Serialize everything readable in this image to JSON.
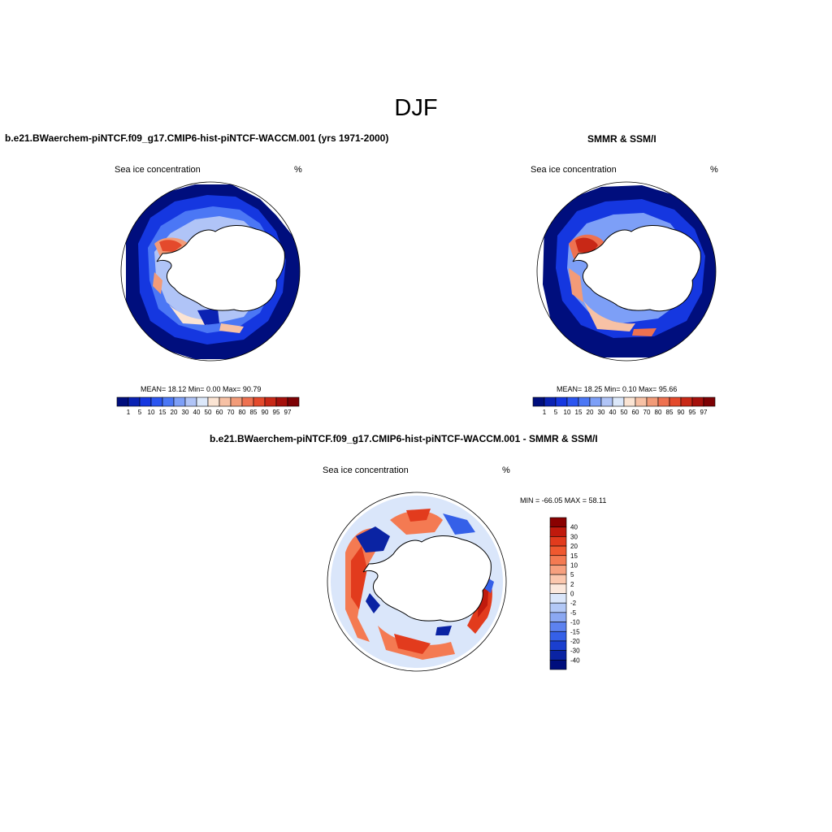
{
  "figure_title": "DJF",
  "panels": [
    {
      "title": "b.e21.BWaerchem-piNTCF.f09_g17.CMIP6-hist-piNTCF-WACCM.001 (yrs 1971-2000)",
      "left_label": "Sea ice concentration",
      "right_label": "%",
      "stats": "MEAN=  18.12  Min=   0.00  Max=  90.79"
    },
    {
      "title": "SMMR & SSM/I",
      "left_label": "Sea ice concentration",
      "right_label": "%",
      "stats": "MEAN=  18.25  Min=   0.10  Max=  95.66"
    },
    {
      "title": "b.e21.BWaerchem-piNTCF.f09_g17.CMIP6-hist-piNTCF-WACCM.001 - SMMR & SSM/I",
      "left_label": "Sea ice concentration",
      "right_label": "%",
      "stats": "MIN = -66.05 MAX =  58.11"
    }
  ],
  "colorbar_conc": {
    "labels": [
      "1",
      "5",
      "10",
      "15",
      "20",
      "30",
      "40",
      "50",
      "60",
      "70",
      "80",
      "85",
      "90",
      "95",
      "97"
    ],
    "colors": [
      "#000e7d",
      "#0a22b3",
      "#1537e0",
      "#2b55f0",
      "#4b77f5",
      "#7d9ff7",
      "#b0c4f7",
      "#dce8fa",
      "#fbe4d3",
      "#f7c1a5",
      "#f29b78",
      "#ee7150",
      "#e44a2c",
      "#c82816",
      "#a5100b",
      "#7d0104"
    ]
  },
  "colorbar_diff": {
    "labels": [
      "40",
      "30",
      "20",
      "15",
      "10",
      "5",
      "2",
      "0",
      "-2",
      "-5",
      "-10",
      "-15",
      "-20",
      "-30",
      "-40"
    ],
    "colors": [
      "#8a0101",
      "#c01a0d",
      "#e23b1d",
      "#f0582f",
      "#f47a52",
      "#f7a07e",
      "#fbc7ad",
      "#fbe8dc",
      "#dae6fa",
      "#b2c8f6",
      "#8ba8f2",
      "#5d82ef",
      "#3560e8",
      "#1b3fcf",
      "#0a23a3",
      "#000e7d"
    ]
  }
}
